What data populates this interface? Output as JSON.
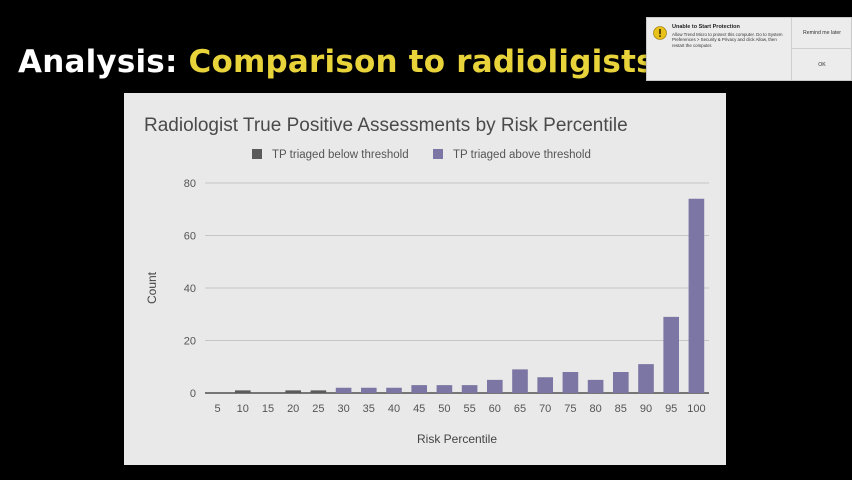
{
  "slide": {
    "title_prefix": "Analysis: ",
    "title_highlight": "Comparison to radioligists"
  },
  "notification": {
    "title": "Unable to Start Protection",
    "message": "Allow Trend Micro to protect this computer. Do to System Preferences > Security & Privacy and click Allow, then restart the computer.",
    "remind_label": "Remind me later",
    "ok_label": "OK",
    "icon": "warning-shield-icon"
  },
  "chart_data": {
    "type": "bar",
    "title": "Radiologist True Positive Assessments by Risk Percentile",
    "xlabel": "Risk Percentile",
    "ylabel": "Count",
    "ylim": [
      0,
      80
    ],
    "yticks": [
      0,
      20,
      40,
      60,
      80
    ],
    "grid": true,
    "legend_position": "top",
    "categories": [
      "5",
      "10",
      "15",
      "20",
      "25",
      "30",
      "35",
      "40",
      "45",
      "50",
      "55",
      "60",
      "65",
      "70",
      "75",
      "80",
      "85",
      "90",
      "95",
      "100"
    ],
    "series": [
      {
        "name": "TP triaged below threshold",
        "color": "#5a5a5a",
        "values": [
          0,
          1,
          0,
          1,
          1,
          0,
          0,
          0,
          0,
          0,
          0,
          0,
          0,
          0,
          0,
          0,
          0,
          0,
          0,
          0
        ]
      },
      {
        "name": "TP triaged above threshold",
        "color": "#7b76a3",
        "values": [
          0,
          0,
          0,
          0,
          0,
          2,
          2,
          2,
          3,
          3,
          3,
          5,
          9,
          6,
          8,
          5,
          8,
          11,
          29,
          74
        ]
      }
    ]
  }
}
